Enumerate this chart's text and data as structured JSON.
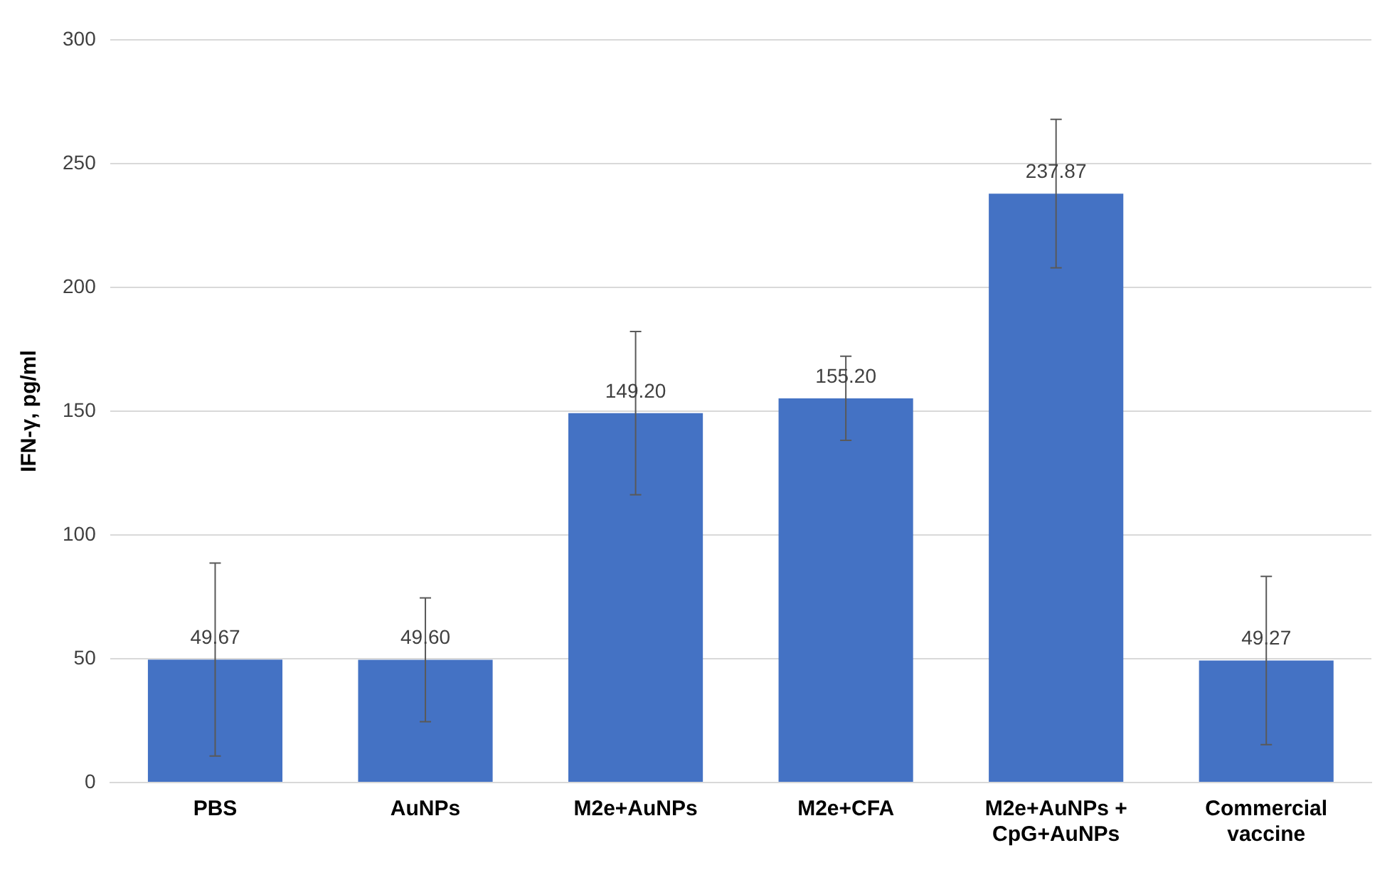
{
  "chart_data": {
    "type": "bar",
    "ylabel": "IFN-γ, pg/ml",
    "categories": [
      "PBS",
      "AuNPs",
      "M2e+AuNPs",
      "M2e+CFA",
      "M2e+AuNPs + CpG+AuNPs",
      "Commercial vaccine"
    ],
    "values": [
      49.67,
      49.6,
      149.2,
      155.2,
      237.87,
      49.27
    ],
    "value_labels": [
      "49.67",
      "49.60",
      "149.20",
      "155.20",
      "237.87",
      "49.27"
    ],
    "errors": [
      39,
      25,
      33,
      17,
      30,
      34
    ],
    "color": "#4472c4",
    "ylim": [
      0,
      300
    ],
    "yticks": [
      0,
      50,
      100,
      150,
      200,
      250,
      300
    ],
    "grid": "y"
  }
}
